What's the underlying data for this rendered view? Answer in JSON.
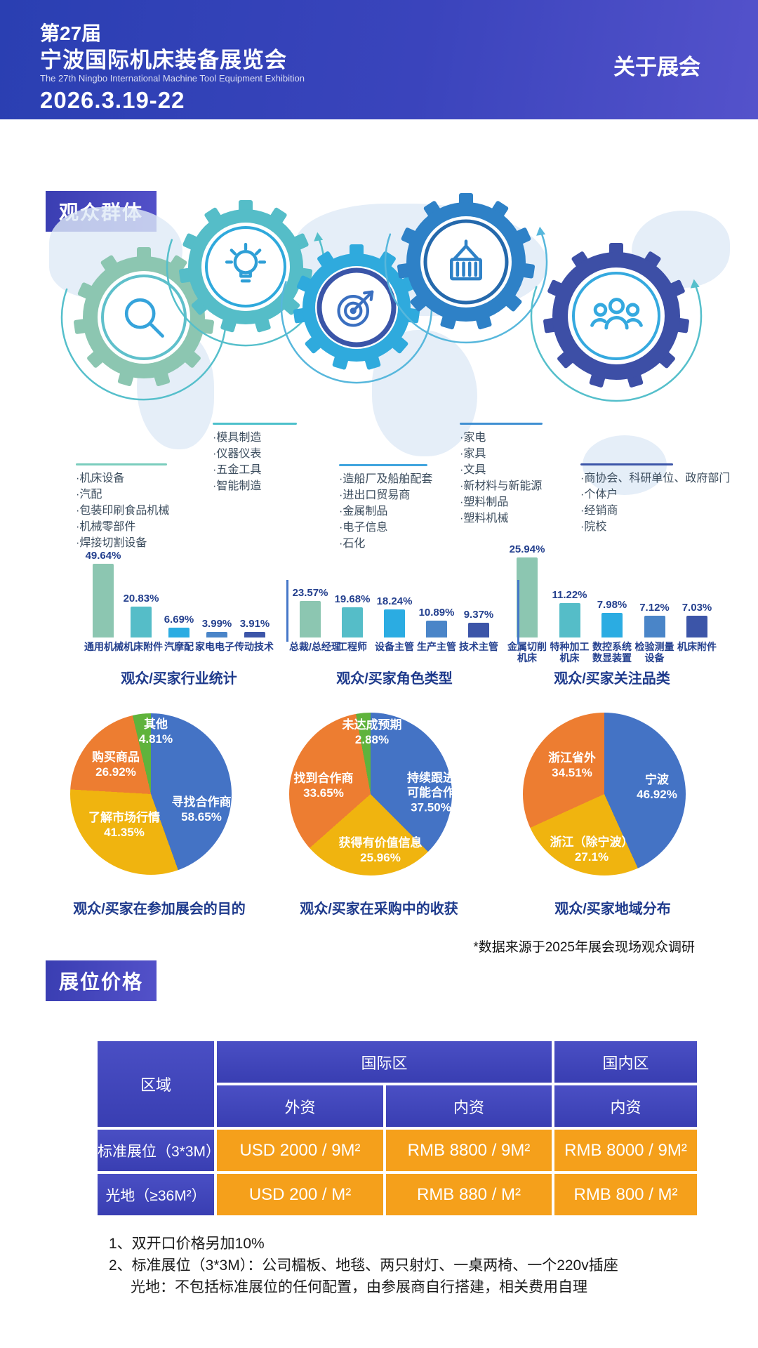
{
  "header": {
    "title_line1": "第27届",
    "title_line2": "宁波国际机床装备展览会",
    "subtitle_en": "The 27th Ningbo International Machine Tool Equipment Exhibition",
    "date": "2026.3.19-22",
    "nav_about": "关于展会"
  },
  "sections": {
    "audience": "观众群体",
    "pricing": "展位价格"
  },
  "audience": {
    "groups": [
      {
        "icon": "magnifier",
        "items": [
          "机床设备",
          "汽配",
          "包装印刷食品机械",
          "机械零部件",
          "焊接切割设备"
        ]
      },
      {
        "icon": "lightbulb",
        "items": [
          "模具制造",
          "仪器仪表",
          "五金工具",
          "智能制造"
        ]
      },
      {
        "icon": "dartboard",
        "items": [
          "造船厂及船舶配套",
          "进出口贸易商",
          "金属制品",
          "电子信息",
          "石化"
        ]
      },
      {
        "icon": "container-crane",
        "items": [
          "家电",
          "家具",
          "文具",
          "新材料与新能源",
          "塑料制品",
          "塑料机械"
        ]
      },
      {
        "icon": "people-group",
        "items": [
          "商协会、科研单位、政府部门",
          "个体户",
          "经销商",
          "院校"
        ]
      }
    ]
  },
  "chart_data": [
    {
      "type": "bar",
      "title": "观众/买家行业统计",
      "categories": [
        "通用机械",
        "机床附件",
        "汽摩配",
        "家电电子",
        "传动技术"
      ],
      "values": [
        49.64,
        20.83,
        6.69,
        3.99,
        3.91
      ],
      "unit": "%",
      "colors": [
        "#8CC6B1",
        "#55BDC8",
        "#2BACE2",
        "#4A85C8",
        "#3C55A8"
      ]
    },
    {
      "type": "bar",
      "title": "观众/买家角色类型",
      "categories": [
        "总裁/总经理",
        "工程师",
        "设备主管",
        "生产主管",
        "技术主管"
      ],
      "values": [
        23.57,
        19.68,
        18.24,
        10.89,
        9.37
      ],
      "unit": "%",
      "colors": [
        "#8CC6B1",
        "#55BDC8",
        "#2BACE2",
        "#4A85C8",
        "#3C55A8"
      ]
    },
    {
      "type": "bar",
      "title": "观众/买家关注品类",
      "categories": [
        "金属切削机床",
        "特种加工机床",
        "数控系统数显装置",
        "检验测量设备",
        "机床附件"
      ],
      "categories_lines": [
        [
          "金属切削",
          "机床"
        ],
        [
          "特种加工",
          "机床"
        ],
        [
          "数控系统",
          "数显装置"
        ],
        [
          "检验测量",
          "设备"
        ],
        [
          "机床附件"
        ]
      ],
      "values": [
        25.94,
        11.22,
        7.98,
        7.12,
        7.03
      ],
      "unit": "%",
      "colors": [
        "#8CC6B1",
        "#55BDC8",
        "#2BACE2",
        "#4A85C8",
        "#3C55A8"
      ]
    },
    {
      "type": "pie",
      "title": "观众/买家在参加展会的目的",
      "slices": [
        {
          "label": "寻找合作商",
          "label_lines": [
            "寻找合作商"
          ],
          "value": 58.65,
          "pct": "58.65%",
          "color": "#4473C5"
        },
        {
          "label": "了解市场行情",
          "label_lines": [
            "了解市场行情"
          ],
          "value": 41.35,
          "pct": "41.35%",
          "color": "#F0B40F"
        },
        {
          "label": "购买商品",
          "label_lines": [
            "购买商品"
          ],
          "value": 26.92,
          "pct": "26.92%",
          "color": "#ED7D31"
        },
        {
          "label": "其他",
          "label_lines": [
            "其他"
          ],
          "value": 4.81,
          "pct": "4.81%",
          "color": "#5FB33C"
        }
      ]
    },
    {
      "type": "pie",
      "title": "观众/买家在采购中的收获",
      "slices": [
        {
          "label": "持续跟进可能合作",
          "label_lines": [
            "持续跟进",
            "可能合作"
          ],
          "value": 37.5,
          "pct": "37.50%",
          "color": "#4473C5"
        },
        {
          "label": "获得有价值信息",
          "label_lines": [
            "获得有价值信息"
          ],
          "value": 25.96,
          "pct": "25.96%",
          "color": "#F0B40F"
        },
        {
          "label": "找到合作商",
          "label_lines": [
            "找到合作商"
          ],
          "value": 33.65,
          "pct": "33.65%",
          "color": "#ED7D31"
        },
        {
          "label": "未达成预期",
          "label_lines": [
            "未达成预期"
          ],
          "value": 2.88,
          "pct": "2.88%",
          "color": "#5FB33C"
        }
      ]
    },
    {
      "type": "pie",
      "title": "观众/买家地域分布",
      "slices": [
        {
          "label": "宁波",
          "label_lines": [
            "宁波"
          ],
          "value": 46.92,
          "pct": "46.92%",
          "color": "#4473C5"
        },
        {
          "label": "浙江（除宁波）",
          "label_lines": [
            "浙江（除宁波）"
          ],
          "value": 27.1,
          "pct": "27.1%",
          "color": "#F0B40F"
        },
        {
          "label": "浙江省外",
          "label_lines": [
            "浙江省外"
          ],
          "value": 34.51,
          "pct": "34.51%",
          "color": "#ED7D31"
        }
      ]
    }
  ],
  "footnote": "*数据来源于2025年展会现场观众调研",
  "pricing": {
    "region_header": "区域",
    "intl_header": "国际区",
    "domestic_header": "国内区",
    "sub_headers": [
      "外资",
      "内资",
      "内资"
    ],
    "rows": [
      {
        "label": "标准展位（3*3M）",
        "values": [
          "USD 2000 / 9M²",
          "RMB 8800 / 9M²",
          "RMB 8000 / 9M²"
        ]
      },
      {
        "label": "光地（≥36M²）",
        "values": [
          "USD 200 / M²",
          "RMB 880 / M²",
          "RMB 800 / M²"
        ]
      }
    ],
    "notes": [
      "1、双开口价格另加10%",
      "2、标准展位（3*3M）：公司楣板、地毯、两只射灯、一桌两椅、一个220v插座",
      "光地：不包括标准展位的任何配置，由参展商自行搭建，相关费用自理"
    ]
  },
  "colors": {
    "header_gradient": [
      "#2A3FB2",
      "#5452CB"
    ],
    "bar_palette": [
      "#8CC6B1",
      "#55BDC8",
      "#2BACE2",
      "#4A85C8",
      "#3C55A8"
    ],
    "pie_blue": "#4473C5",
    "pie_yellow": "#F0B40F",
    "pie_orange": "#ED7D31",
    "pie_green": "#5FB33C",
    "table_header_blue": "#3F45BC",
    "table_orange": "#F5A01B"
  }
}
